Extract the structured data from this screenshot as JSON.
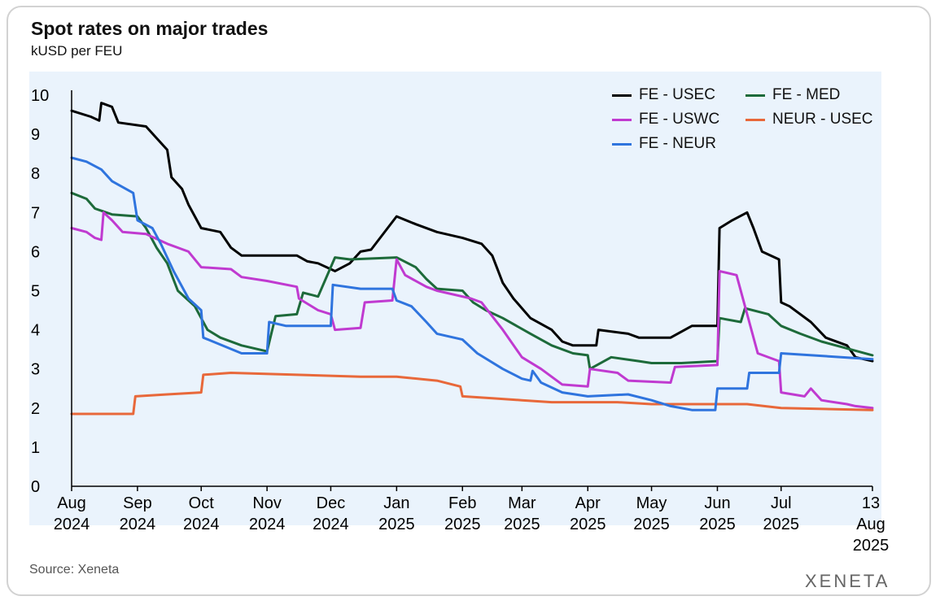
{
  "header": {
    "title": "Spot rates on major trades",
    "subtitle": "kUSD per FEU"
  },
  "footer": {
    "source": "Source: Xeneta",
    "logo_text": "XENETA"
  },
  "colors": {
    "plot_background": "#eaf3fc",
    "FE - USEC": "#000000",
    "FE - MED": "#1d6a3a",
    "FE - USWC": "#c03ad0",
    "NEUR - USEC": "#e8683a",
    "FE - NEUR": "#2f74de"
  },
  "chart_data": {
    "type": "line",
    "title": "Spot rates on major trades",
    "subtitle": "kUSD per FEU",
    "xlabel": "",
    "ylabel": "",
    "ylim": [
      0,
      10
    ],
    "yticks": [
      "0",
      "1",
      "2",
      "3",
      "4",
      "5",
      "6",
      "7",
      "8",
      "9",
      "10"
    ],
    "xlim": [
      "2024-08-01",
      "2025-08-13"
    ],
    "xticks": [
      {
        "date": "2024-08-01",
        "lines": [
          "Aug",
          "2024"
        ]
      },
      {
        "date": "2024-09-01",
        "lines": [
          "Sep",
          "2024"
        ]
      },
      {
        "date": "2024-10-01",
        "lines": [
          "Oct",
          "2024"
        ]
      },
      {
        "date": "2024-11-01",
        "lines": [
          "Nov",
          "2024"
        ]
      },
      {
        "date": "2024-12-01",
        "lines": [
          "Dec",
          "2024"
        ]
      },
      {
        "date": "2025-01-01",
        "lines": [
          "Jan",
          "2025"
        ]
      },
      {
        "date": "2025-02-01",
        "lines": [
          "Feb",
          "2025"
        ]
      },
      {
        "date": "2025-03-01",
        "lines": [
          "Mar",
          "2025"
        ]
      },
      {
        "date": "2025-04-01",
        "lines": [
          "Apr",
          "2025"
        ]
      },
      {
        "date": "2025-05-01",
        "lines": [
          "May",
          "2025"
        ]
      },
      {
        "date": "2025-06-01",
        "lines": [
          "Jun",
          "2025"
        ]
      },
      {
        "date": "2025-07-01",
        "lines": [
          "Jul",
          "2025"
        ]
      },
      {
        "date": "2025-08-13",
        "lines": [
          "13",
          "Aug",
          "2025"
        ]
      }
    ],
    "grid": false,
    "legend_position": "top-right",
    "series": [
      {
        "name": "FE - USEC",
        "points": [
          [
            "2024-08-01",
            9.6
          ],
          [
            "2024-08-10",
            9.45
          ],
          [
            "2024-08-14",
            9.35
          ],
          [
            "2024-08-15",
            9.8
          ],
          [
            "2024-08-20",
            9.7
          ],
          [
            "2024-08-23",
            9.3
          ],
          [
            "2024-09-05",
            9.2
          ],
          [
            "2024-09-10",
            8.9
          ],
          [
            "2024-09-15",
            8.6
          ],
          [
            "2024-09-17",
            7.9
          ],
          [
            "2024-09-22",
            7.6
          ],
          [
            "2024-09-25",
            7.2
          ],
          [
            "2024-10-01",
            6.6
          ],
          [
            "2024-10-10",
            6.5
          ],
          [
            "2024-10-15",
            6.1
          ],
          [
            "2024-10-20",
            5.9
          ],
          [
            "2024-11-15",
            5.9
          ],
          [
            "2024-11-20",
            5.75
          ],
          [
            "2024-11-25",
            5.7
          ],
          [
            "2024-12-03",
            5.5
          ],
          [
            "2024-12-10",
            5.7
          ],
          [
            "2024-12-15",
            6.0
          ],
          [
            "2024-12-20",
            6.05
          ],
          [
            "2025-01-01",
            6.9
          ],
          [
            "2025-01-10",
            6.7
          ],
          [
            "2025-01-20",
            6.5
          ],
          [
            "2025-02-01",
            6.35
          ],
          [
            "2025-02-10",
            6.2
          ],
          [
            "2025-02-15",
            5.9
          ],
          [
            "2025-02-20",
            5.2
          ],
          [
            "2025-02-25",
            4.8
          ],
          [
            "2025-03-05",
            4.3
          ],
          [
            "2025-03-15",
            4.0
          ],
          [
            "2025-03-20",
            3.7
          ],
          [
            "2025-03-25",
            3.6
          ],
          [
            "2025-04-05",
            3.6
          ],
          [
            "2025-04-06",
            4.0
          ],
          [
            "2025-04-20",
            3.9
          ],
          [
            "2025-04-25",
            3.8
          ],
          [
            "2025-05-10",
            3.8
          ],
          [
            "2025-05-20",
            4.1
          ],
          [
            "2025-06-01",
            4.1
          ],
          [
            "2025-06-02",
            6.6
          ],
          [
            "2025-06-08",
            6.8
          ],
          [
            "2025-06-15",
            7.0
          ],
          [
            "2025-06-18",
            6.6
          ],
          [
            "2025-06-22",
            6.0
          ],
          [
            "2025-06-30",
            5.8
          ],
          [
            "2025-07-01",
            4.7
          ],
          [
            "2025-07-05",
            4.6
          ],
          [
            "2025-07-15",
            4.2
          ],
          [
            "2025-07-22",
            3.8
          ],
          [
            "2025-08-01",
            3.6
          ],
          [
            "2025-08-05",
            3.3
          ],
          [
            "2025-08-13",
            3.2
          ]
        ]
      },
      {
        "name": "FE - MED",
        "points": [
          [
            "2024-08-01",
            7.5
          ],
          [
            "2024-08-08",
            7.35
          ],
          [
            "2024-08-12",
            7.1
          ],
          [
            "2024-08-20",
            6.95
          ],
          [
            "2024-09-01",
            6.9
          ],
          [
            "2024-09-05",
            6.6
          ],
          [
            "2024-09-10",
            6.1
          ],
          [
            "2024-09-15",
            5.7
          ],
          [
            "2024-09-20",
            5.0
          ],
          [
            "2024-09-28",
            4.6
          ],
          [
            "2024-10-04",
            4.0
          ],
          [
            "2024-10-10",
            3.8
          ],
          [
            "2024-10-20",
            3.6
          ],
          [
            "2024-11-01",
            3.45
          ],
          [
            "2024-11-05",
            4.35
          ],
          [
            "2024-11-15",
            4.4
          ],
          [
            "2024-11-18",
            4.95
          ],
          [
            "2024-11-25",
            4.85
          ],
          [
            "2024-12-03",
            5.85
          ],
          [
            "2024-12-10",
            5.8
          ],
          [
            "2025-01-01",
            5.85
          ],
          [
            "2025-01-10",
            5.6
          ],
          [
            "2025-01-15",
            5.3
          ],
          [
            "2025-01-20",
            5.05
          ],
          [
            "2025-02-01",
            5.0
          ],
          [
            "2025-02-06",
            4.7
          ],
          [
            "2025-02-12",
            4.5
          ],
          [
            "2025-02-20",
            4.3
          ],
          [
            "2025-03-05",
            3.9
          ],
          [
            "2025-03-15",
            3.6
          ],
          [
            "2025-03-25",
            3.4
          ],
          [
            "2025-04-01",
            3.35
          ],
          [
            "2025-04-02",
            3.0
          ],
          [
            "2025-04-12",
            3.3
          ],
          [
            "2025-04-25",
            3.2
          ],
          [
            "2025-05-01",
            3.15
          ],
          [
            "2025-05-15",
            3.15
          ],
          [
            "2025-06-01",
            3.2
          ],
          [
            "2025-06-02",
            4.3
          ],
          [
            "2025-06-12",
            4.2
          ],
          [
            "2025-06-14",
            4.55
          ],
          [
            "2025-06-25",
            4.4
          ],
          [
            "2025-07-01",
            4.1
          ],
          [
            "2025-07-10",
            3.9
          ],
          [
            "2025-07-20",
            3.7
          ],
          [
            "2025-08-13",
            3.35
          ]
        ]
      },
      {
        "name": "FE - USWC",
        "points": [
          [
            "2024-08-01",
            6.6
          ],
          [
            "2024-08-08",
            6.5
          ],
          [
            "2024-08-12",
            6.35
          ],
          [
            "2024-08-15",
            6.3
          ],
          [
            "2024-08-16",
            7.0
          ],
          [
            "2024-08-20",
            6.8
          ],
          [
            "2024-08-25",
            6.5
          ],
          [
            "2024-09-05",
            6.45
          ],
          [
            "2024-09-15",
            6.2
          ],
          [
            "2024-09-25",
            6.0
          ],
          [
            "2024-10-01",
            5.6
          ],
          [
            "2024-10-15",
            5.55
          ],
          [
            "2024-10-20",
            5.35
          ],
          [
            "2024-11-01",
            5.25
          ],
          [
            "2024-11-15",
            5.1
          ],
          [
            "2024-11-16",
            4.8
          ],
          [
            "2024-11-25",
            4.5
          ],
          [
            "2024-12-01",
            4.4
          ],
          [
            "2024-12-03",
            4.0
          ],
          [
            "2024-12-15",
            4.05
          ],
          [
            "2024-12-17",
            4.7
          ],
          [
            "2024-12-30",
            4.75
          ],
          [
            "2025-01-01",
            5.8
          ],
          [
            "2025-01-05",
            5.4
          ],
          [
            "2025-01-15",
            5.1
          ],
          [
            "2025-01-20",
            5.0
          ],
          [
            "2025-02-05",
            4.8
          ],
          [
            "2025-02-10",
            4.7
          ],
          [
            "2025-02-20",
            4.0
          ],
          [
            "2025-03-01",
            3.3
          ],
          [
            "2025-03-10",
            3.0
          ],
          [
            "2025-03-20",
            2.6
          ],
          [
            "2025-04-01",
            2.55
          ],
          [
            "2025-04-02",
            3.0
          ],
          [
            "2025-04-15",
            2.9
          ],
          [
            "2025-04-20",
            2.7
          ],
          [
            "2025-05-10",
            2.65
          ],
          [
            "2025-05-12",
            3.05
          ],
          [
            "2025-06-01",
            3.1
          ],
          [
            "2025-06-02",
            5.5
          ],
          [
            "2025-06-10",
            5.4
          ],
          [
            "2025-06-14",
            4.6
          ],
          [
            "2025-06-20",
            3.4
          ],
          [
            "2025-06-30",
            3.2
          ],
          [
            "2025-07-01",
            2.4
          ],
          [
            "2025-07-12",
            2.3
          ],
          [
            "2025-07-15",
            2.5
          ],
          [
            "2025-07-20",
            2.2
          ],
          [
            "2025-08-01",
            2.1
          ],
          [
            "2025-08-05",
            2.05
          ],
          [
            "2025-08-13",
            2.0
          ]
        ]
      },
      {
        "name": "NEUR - USEC",
        "points": [
          [
            "2024-08-01",
            1.85
          ],
          [
            "2024-08-30",
            1.85
          ],
          [
            "2024-08-31",
            2.3
          ],
          [
            "2024-09-15",
            2.35
          ],
          [
            "2024-10-01",
            2.4
          ],
          [
            "2024-10-02",
            2.85
          ],
          [
            "2024-10-15",
            2.9
          ],
          [
            "2024-11-15",
            2.85
          ],
          [
            "2024-12-15",
            2.8
          ],
          [
            "2025-01-01",
            2.8
          ],
          [
            "2025-01-20",
            2.7
          ],
          [
            "2025-01-31",
            2.55
          ],
          [
            "2025-02-01",
            2.3
          ],
          [
            "2025-02-15",
            2.25
          ],
          [
            "2025-03-01",
            2.2
          ],
          [
            "2025-03-15",
            2.15
          ],
          [
            "2025-04-15",
            2.15
          ],
          [
            "2025-05-01",
            2.1
          ],
          [
            "2025-06-01",
            2.1
          ],
          [
            "2025-06-15",
            2.1
          ],
          [
            "2025-07-01",
            2.0
          ],
          [
            "2025-08-13",
            1.95
          ]
        ]
      },
      {
        "name": "FE - NEUR",
        "points": [
          [
            "2024-08-01",
            8.4
          ],
          [
            "2024-08-08",
            8.3
          ],
          [
            "2024-08-15",
            8.1
          ],
          [
            "2024-08-20",
            7.8
          ],
          [
            "2024-08-30",
            7.5
          ],
          [
            "2024-09-01",
            6.8
          ],
          [
            "2024-09-08",
            6.6
          ],
          [
            "2024-09-12",
            6.2
          ],
          [
            "2024-09-18",
            5.5
          ],
          [
            "2024-09-25",
            4.8
          ],
          [
            "2024-10-01",
            4.5
          ],
          [
            "2024-10-02",
            3.8
          ],
          [
            "2024-10-20",
            3.4
          ],
          [
            "2024-11-01",
            3.4
          ],
          [
            "2024-11-02",
            4.2
          ],
          [
            "2024-11-10",
            4.1
          ],
          [
            "2024-11-20",
            4.1
          ],
          [
            "2024-12-01",
            4.1
          ],
          [
            "2024-12-02",
            5.15
          ],
          [
            "2024-12-15",
            5.05
          ],
          [
            "2024-12-30",
            5.05
          ],
          [
            "2025-01-01",
            4.75
          ],
          [
            "2025-01-08",
            4.6
          ],
          [
            "2025-01-15",
            4.2
          ],
          [
            "2025-01-20",
            3.9
          ],
          [
            "2025-02-01",
            3.75
          ],
          [
            "2025-02-08",
            3.4
          ],
          [
            "2025-02-20",
            3.0
          ],
          [
            "2025-03-01",
            2.75
          ],
          [
            "2025-03-05",
            2.7
          ],
          [
            "2025-03-06",
            2.95
          ],
          [
            "2025-03-10",
            2.65
          ],
          [
            "2025-03-20",
            2.4
          ],
          [
            "2025-04-01",
            2.3
          ],
          [
            "2025-04-20",
            2.35
          ],
          [
            "2025-05-01",
            2.2
          ],
          [
            "2025-05-10",
            2.05
          ],
          [
            "2025-05-20",
            1.95
          ],
          [
            "2025-05-31",
            1.95
          ],
          [
            "2025-06-01",
            2.5
          ],
          [
            "2025-06-15",
            2.5
          ],
          [
            "2025-06-16",
            2.9
          ],
          [
            "2025-06-30",
            2.9
          ],
          [
            "2025-07-01",
            3.4
          ],
          [
            "2025-08-13",
            3.25
          ]
        ]
      }
    ]
  }
}
